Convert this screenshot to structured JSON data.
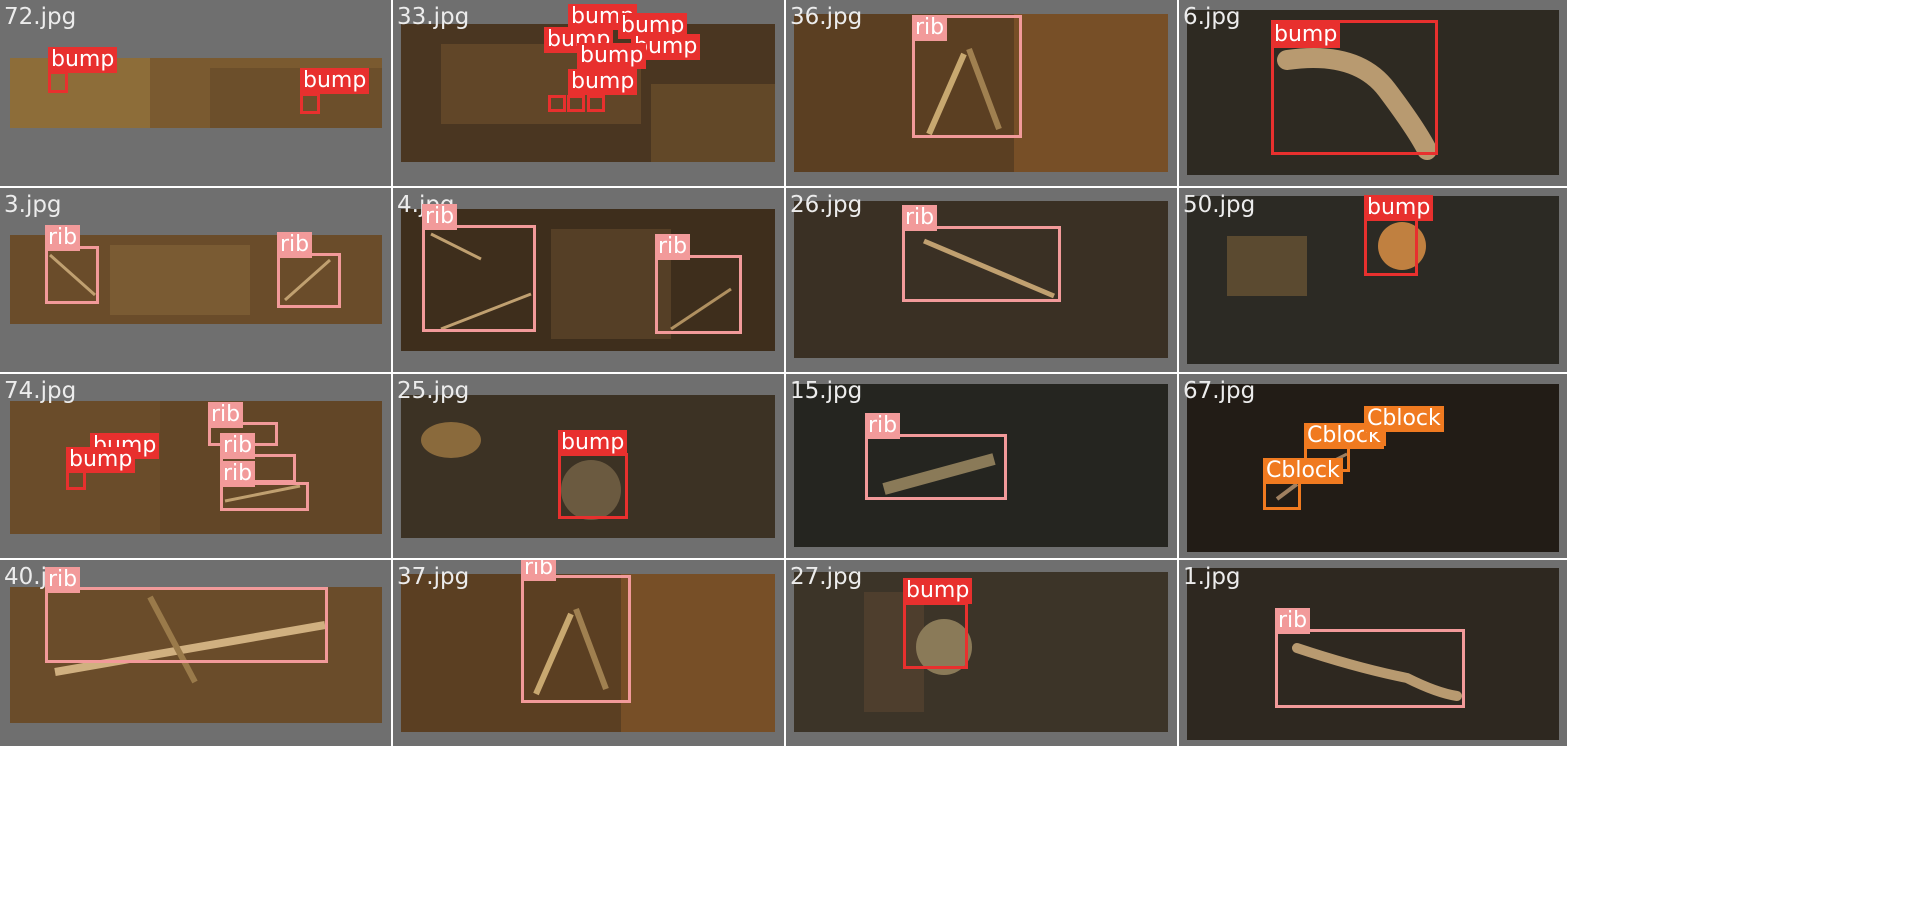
{
  "grid": {
    "cells": [
      {
        "file": "72.jpg",
        "detections": [
          {
            "label": "bump"
          },
          {
            "label": "bump"
          }
        ]
      },
      {
        "file": "33.jpg",
        "detections": [
          {
            "label": "bump"
          },
          {
            "label": "bump"
          },
          {
            "label": "bump"
          },
          {
            "label": "bump"
          },
          {
            "label": "bump"
          },
          {
            "label": "bump"
          }
        ]
      },
      {
        "file": "36.jpg",
        "detections": [
          {
            "label": "rib"
          }
        ]
      },
      {
        "file": "6.jpg",
        "detections": [
          {
            "label": "bump"
          }
        ]
      },
      {
        "file": "3.jpg",
        "detections": [
          {
            "label": "rib"
          },
          {
            "label": "rib"
          }
        ]
      },
      {
        "file": "4.jpg",
        "detections": [
          {
            "label": "rib"
          },
          {
            "label": "rib"
          }
        ]
      },
      {
        "file": "26.jpg",
        "detections": [
          {
            "label": "rib"
          }
        ]
      },
      {
        "file": "50.jpg",
        "detections": [
          {
            "label": "bump"
          }
        ]
      },
      {
        "file": "74.jpg",
        "detections": [
          {
            "label": "bump"
          },
          {
            "label": "bump"
          },
          {
            "label": "rib"
          },
          {
            "label": "rib"
          },
          {
            "label": "rib"
          }
        ]
      },
      {
        "file": "25.jpg",
        "detections": [
          {
            "label": "bump"
          }
        ]
      },
      {
        "file": "15.jpg",
        "detections": [
          {
            "label": "rib"
          }
        ]
      },
      {
        "file": "67.jpg",
        "detections": [
          {
            "label": "Cblock"
          },
          {
            "label": "Cblock"
          },
          {
            "label": "Cblock"
          }
        ]
      },
      {
        "file": "40.jpg",
        "detections": [
          {
            "label": "rib"
          }
        ]
      },
      {
        "file": "37.jpg",
        "detections": [
          {
            "label": "rib"
          }
        ]
      },
      {
        "file": "27.jpg",
        "detections": [
          {
            "label": "bump"
          }
        ]
      },
      {
        "file": "1.jpg",
        "detections": [
          {
            "label": "rib"
          }
        ]
      }
    ]
  },
  "colors": {
    "bump": "#e8302e",
    "rib": "#f29a9a",
    "Cblock": "#f07a20",
    "panel": "#6f6f6f"
  }
}
